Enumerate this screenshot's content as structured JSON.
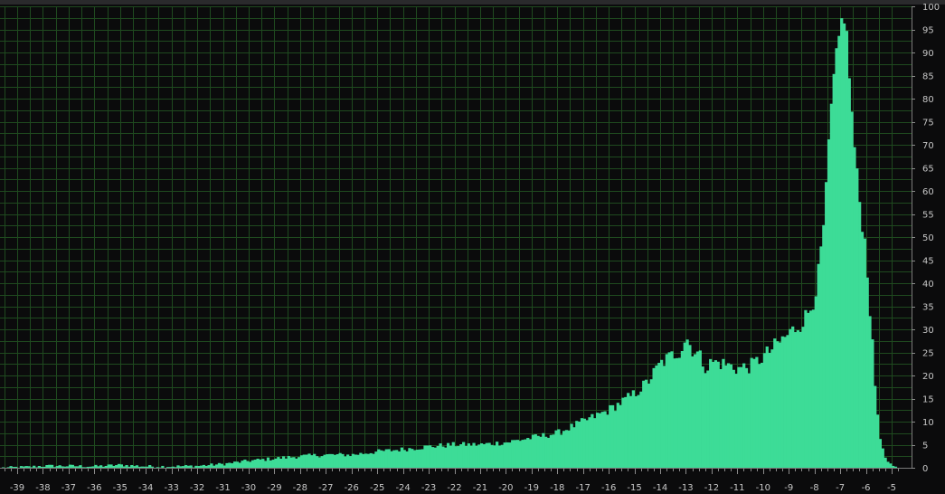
{
  "colors": {
    "background": "#0b0b0c",
    "grid": "#1f4a1f",
    "bars": "#3ddc97",
    "tick_text": "#c6c6c6"
  },
  "chart_data": {
    "type": "bar",
    "title": "",
    "xlabel": "",
    "ylabel": "",
    "xlim": [
      -39.65,
      -4.55
    ],
    "ylim": [
      0,
      100
    ],
    "grid": true,
    "x_ticks": [
      -39,
      -38,
      -37,
      -36,
      -35,
      -34,
      -33,
      -32,
      -31,
      -30,
      -29,
      -28,
      -27,
      -26,
      -25,
      -24,
      -23,
      -22,
      -21,
      -20,
      -19,
      -18,
      -17,
      -16,
      -15,
      -14,
      -13,
      -12,
      -11,
      -10,
      -9,
      -8,
      -7,
      -6,
      -5
    ],
    "y_ticks": [
      0,
      5,
      10,
      15,
      20,
      25,
      30,
      35,
      40,
      45,
      50,
      55,
      60,
      65,
      70,
      75,
      80,
      85,
      90,
      95,
      100
    ],
    "bin_width": 0.1,
    "envelope_x": [
      -39.6,
      -38.5,
      -38.0,
      -37.0,
      -36.0,
      -35.0,
      -34.0,
      -33.0,
      -32.0,
      -31.0,
      -30.0,
      -29.0,
      -28.0,
      -27.0,
      -26.0,
      -25.0,
      -24.0,
      -23.0,
      -22.0,
      -21.0,
      -20.0,
      -19.0,
      -18.0,
      -17.0,
      -16.0,
      -15.0,
      -14.5,
      -14.0,
      -13.5,
      -13.2,
      -13.0,
      -12.8,
      -12.5,
      -12.2,
      -12.0,
      -11.5,
      -11.0,
      -10.5,
      -10.0,
      -9.5,
      -9.0,
      -8.5,
      -8.2,
      -8.0,
      -7.8,
      -7.6,
      -7.4,
      -7.2,
      -7.0,
      -6.9,
      -6.8,
      -6.7,
      -6.6,
      -6.4,
      -6.2,
      -6.0,
      -5.8,
      -5.6,
      -5.4,
      -5.2,
      -5.0,
      -4.8
    ],
    "envelope_y": [
      0,
      0.2,
      0.4,
      0.4,
      0.3,
      0.6,
      0.3,
      0.3,
      0.4,
      0.8,
      1.5,
      2.0,
      2.5,
      2.8,
      2.8,
      3.5,
      4.0,
      4.6,
      5.0,
      5.0,
      5.5,
      6.5,
      7.5,
      10.0,
      12.5,
      16.0,
      18.5,
      22.5,
      24.5,
      25.5,
      28.5,
      26.0,
      24.5,
      21.5,
      23.0,
      22.5,
      21.5,
      22.0,
      24.0,
      26.5,
      29.0,
      31.5,
      34.0,
      37.0,
      44.0,
      55.0,
      75.0,
      87.0,
      95.0,
      98.5,
      97.0,
      90.0,
      80.0,
      66.0,
      55.0,
      47.0,
      30.0,
      14.0,
      4.5,
      1.5,
      0.3,
      0
    ]
  }
}
